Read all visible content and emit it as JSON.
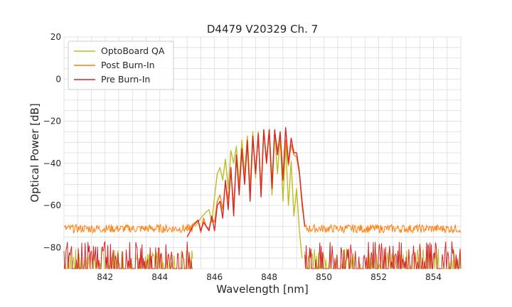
{
  "chart_data": {
    "type": "line",
    "title": "D4479 V20329 Ch. 7",
    "xlabel": "Wavelength [nm]",
    "ylabel": "Optical Power [dB]",
    "xlim": [
      840.5,
      855.0
    ],
    "ylim": [
      -90,
      20
    ],
    "xticks": [
      842,
      844,
      846,
      848,
      850,
      852,
      854
    ],
    "yticks": [
      20,
      0,
      -20,
      -40,
      -60,
      -80
    ],
    "xtick_labels": [
      "842",
      "844",
      "846",
      "848",
      "850",
      "852",
      "854"
    ],
    "ytick_labels": [
      "20",
      "0",
      "−20",
      "−40",
      "−60",
      "−80"
    ],
    "grid": true,
    "legend_position": "top-left",
    "noise_floor": {
      "post_burn_in": -71,
      "pre_burn_in": -84,
      "optoboard_qa": -86
    },
    "series": [
      {
        "name": "OptoBoard QA",
        "color": "#bcbd22",
        "x": [
          845.3,
          845.5,
          845.7,
          845.8,
          845.9,
          846.0,
          846.1,
          846.2,
          846.3,
          846.4,
          846.5,
          846.6,
          846.7,
          846.8,
          846.9,
          847.0,
          847.1,
          847.2,
          847.3,
          847.4,
          847.5,
          847.6,
          847.7,
          847.8,
          847.9,
          848.0,
          848.1,
          848.2,
          848.3,
          848.4,
          848.5,
          848.6,
          848.7,
          848.8,
          848.9,
          849.0,
          849.1,
          849.2
        ],
        "values": [
          -70,
          -66,
          -63,
          -62,
          -68,
          -56,
          -45,
          -42,
          -48,
          -38,
          -52,
          -34,
          -40,
          -32,
          -50,
          -29,
          -45,
          -27,
          -52,
          -25,
          -47,
          -25,
          -55,
          -24,
          -40,
          -24,
          -55,
          -25,
          -45,
          -27,
          -58,
          -31,
          -60,
          -39,
          -65,
          -52,
          -72,
          -85
        ]
      },
      {
        "name": "Post Burn-In",
        "color": "#ff7f0e",
        "x": [
          845.0,
          845.2,
          845.4,
          845.5,
          845.6,
          845.7,
          845.8,
          845.9,
          846.0,
          846.1,
          846.2,
          846.3,
          846.4,
          846.5,
          846.6,
          846.7,
          846.8,
          846.9,
          847.0,
          847.1,
          847.2,
          847.3,
          847.4,
          847.5,
          847.6,
          847.7,
          847.8,
          847.9,
          848.0,
          848.1,
          848.2,
          848.3,
          848.4,
          848.5,
          848.6,
          848.7,
          848.8,
          848.9,
          849.0,
          849.1,
          849.2,
          849.3
        ],
        "values": [
          -72,
          -69,
          -67,
          -73,
          -66,
          -70,
          -71,
          -66,
          -68,
          -58,
          -55,
          -62,
          -49,
          -57,
          -44,
          -60,
          -38,
          -52,
          -35,
          -47,
          -31,
          -54,
          -29,
          -43,
          -27,
          -52,
          -25,
          -38,
          -24,
          -49,
          -25,
          -34,
          -27,
          -46,
          -29,
          -41,
          -31,
          -36,
          -37,
          -45,
          -60,
          -70
        ]
      },
      {
        "name": "Pre Burn-In",
        "color": "#d62728",
        "x": [
          845.0,
          845.2,
          845.4,
          845.5,
          845.6,
          845.7,
          845.8,
          845.9,
          846.0,
          846.1,
          846.2,
          846.3,
          846.4,
          846.5,
          846.6,
          846.7,
          846.8,
          846.9,
          847.0,
          847.1,
          847.2,
          847.3,
          847.4,
          847.5,
          847.6,
          847.7,
          847.8,
          847.9,
          848.0,
          848.1,
          848.2,
          848.3,
          848.4,
          848.5,
          848.6,
          848.7,
          848.8,
          848.9,
          849.0,
          849.1,
          849.2,
          849.3
        ],
        "values": [
          -75,
          -70,
          -67,
          -72,
          -68,
          -70,
          -72,
          -65,
          -72,
          -60,
          -58,
          -66,
          -48,
          -62,
          -42,
          -65,
          -36,
          -55,
          -33,
          -50,
          -29,
          -58,
          -27,
          -45,
          -26,
          -56,
          -24,
          -40,
          -24,
          -52,
          -24,
          -36,
          -25,
          -48,
          -23,
          -40,
          -28,
          -35,
          -35,
          -44,
          -58,
          -70
        ]
      }
    ]
  }
}
